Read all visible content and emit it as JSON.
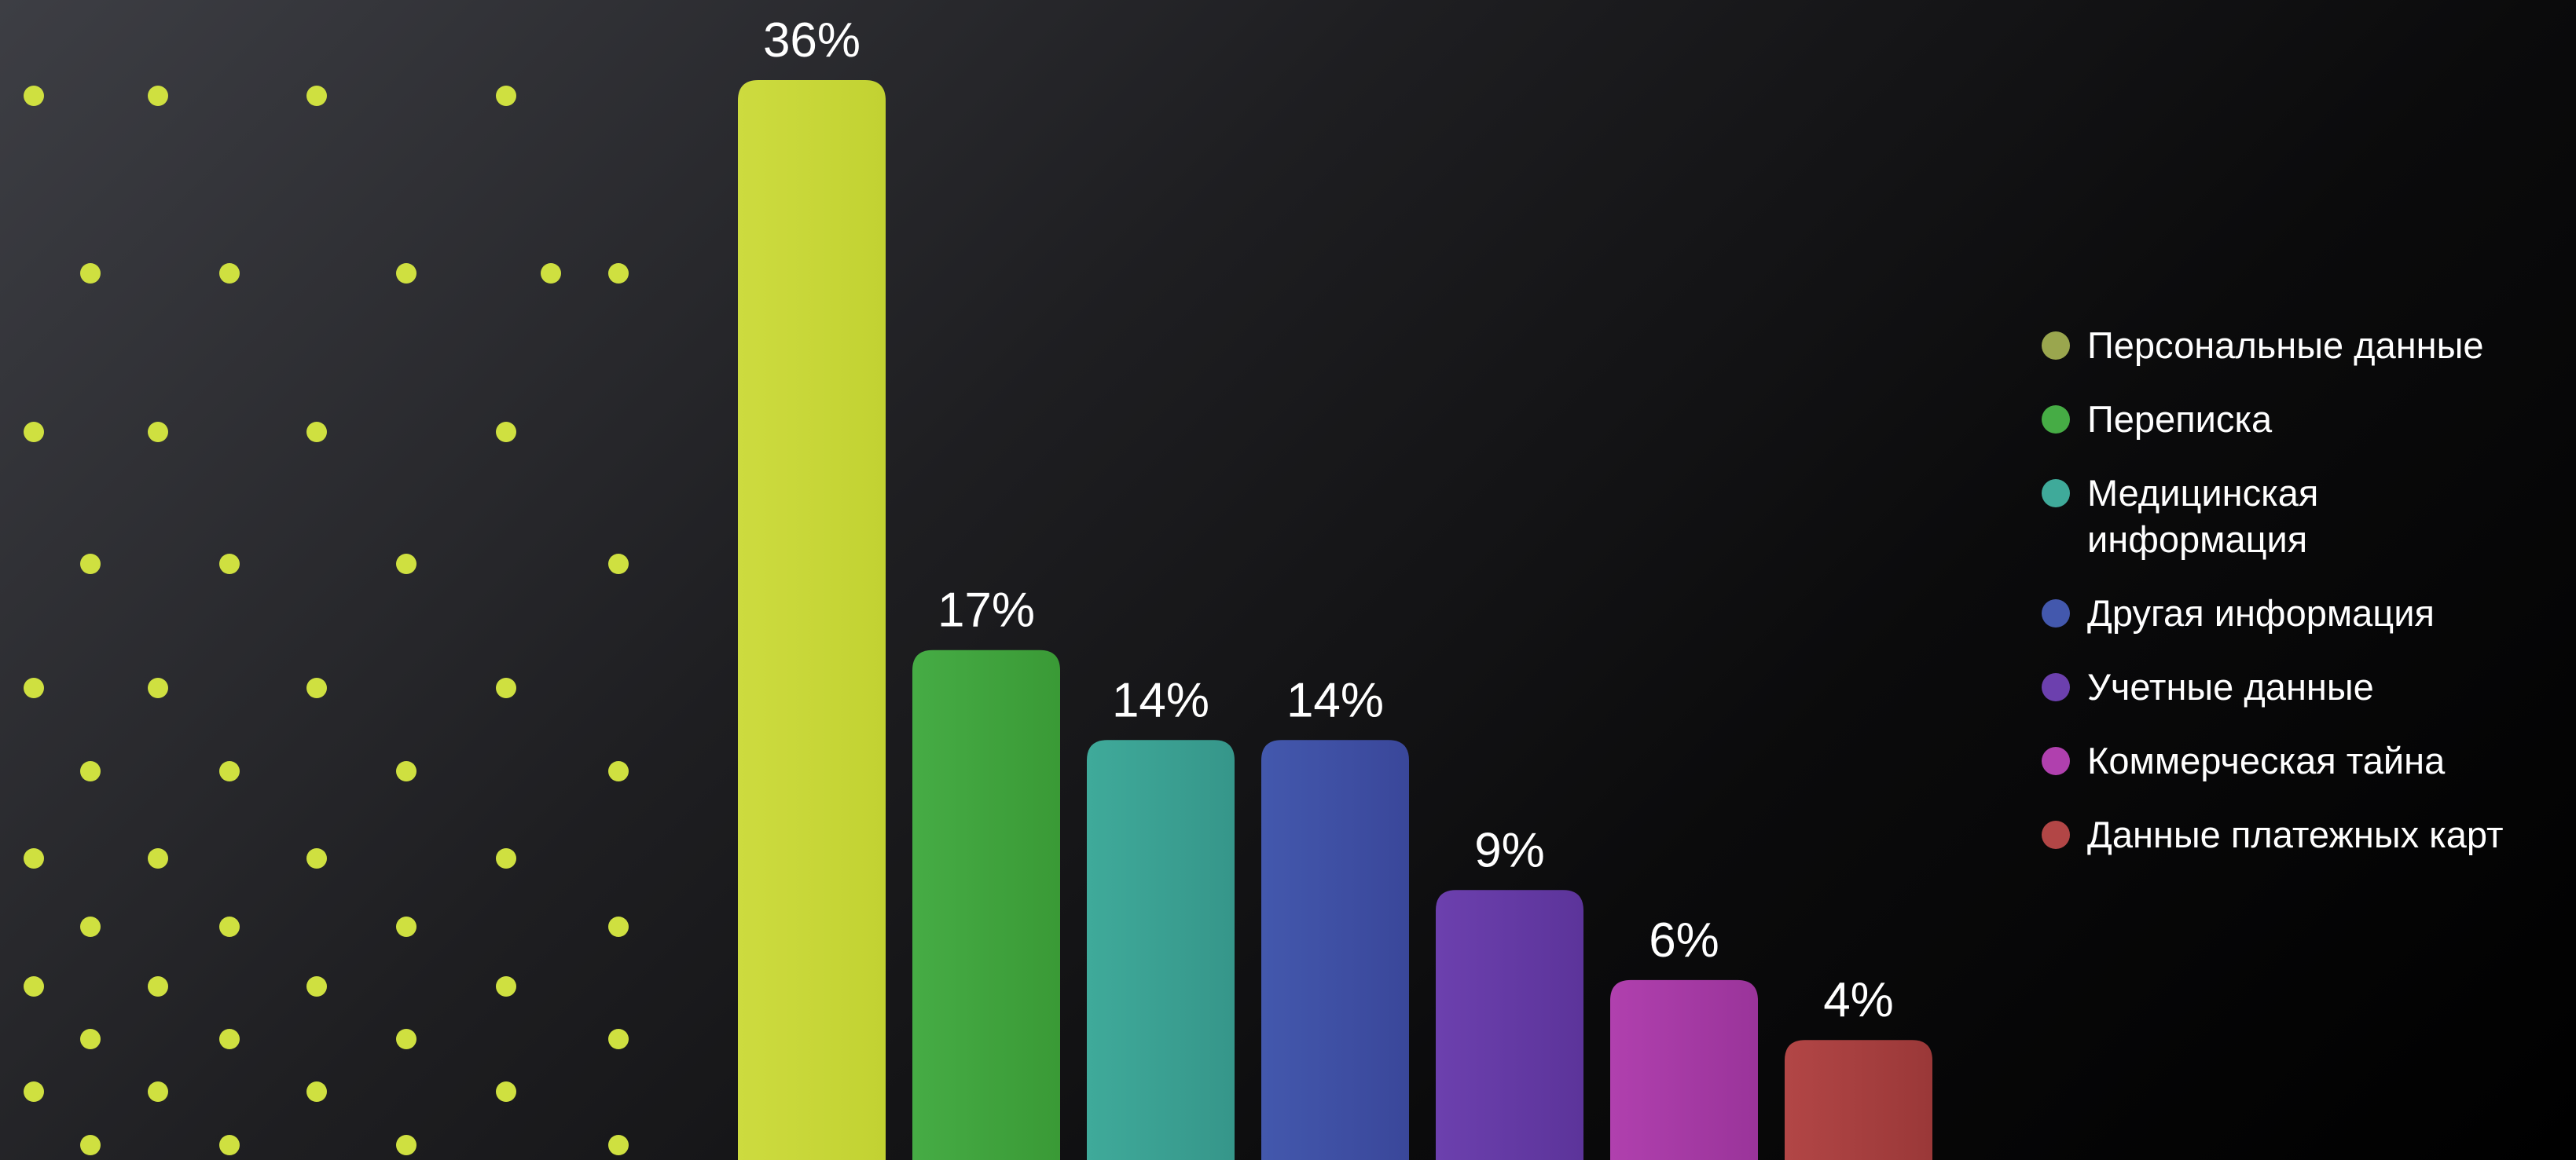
{
  "chart_data": {
    "type": "bar",
    "categories": [
      "Персональные данные",
      "Переписка",
      "Медицинская информация",
      "Другая информация",
      "Учетные данные",
      "Коммерческая тайна",
      "Данные платежных карт"
    ],
    "values": [
      36,
      17,
      14,
      14,
      9,
      6,
      4
    ],
    "value_labels": [
      "36%",
      "17%",
      "14%",
      "14%",
      "9%",
      "6%",
      "4%"
    ],
    "unit": "%",
    "colors": [
      "#cddb3f",
      "#46ac45",
      "#3faa9a",
      "#4358ad",
      "#6c40ae",
      "#b040ae",
      "#b24646"
    ],
    "colors_end": [
      "#c2d232",
      "#3a9a36",
      "#36968a",
      "#3a479a",
      "#5c349a",
      "#9a349a",
      "#9a3838"
    ],
    "legend_dot_colors": [
      "#9aa64e",
      "#46ac45",
      "#3faa9a",
      "#4358ad",
      "#6c40ae",
      "#b040ae",
      "#b24646"
    ],
    "legend_placement": "right",
    "grid": false,
    "axes_visible": false
  },
  "decoration": {
    "dot_color": "#cfe040",
    "pattern": "dot-grid"
  }
}
